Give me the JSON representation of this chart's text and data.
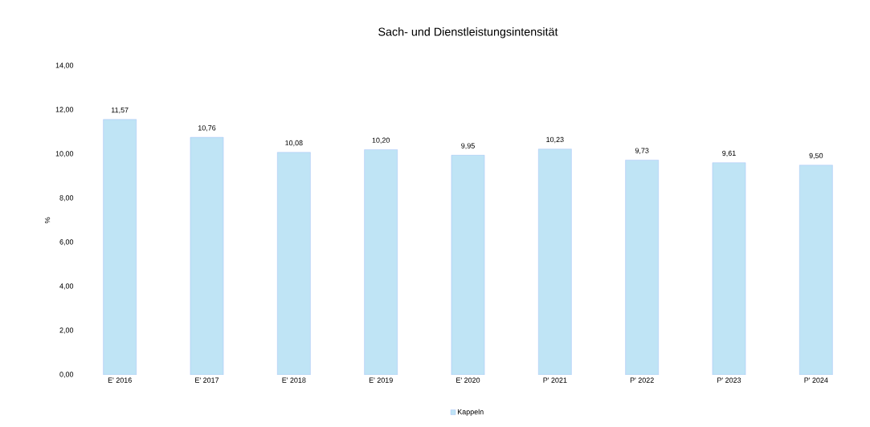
{
  "chart_data": {
    "type": "bar",
    "title": "Sach- und Dienstleistungsintensität",
    "ylabel": "%",
    "categories": [
      "E' 2016",
      "E' 2017",
      "E' 2018",
      "E' 2019",
      "E' 2020",
      "P' 2021",
      "P' 2022",
      "P' 2023",
      "P' 2024"
    ],
    "series": [
      {
        "name": "Kappeln",
        "color": "#bfe4f5",
        "values": [
          11.57,
          10.76,
          10.08,
          10.2,
          9.95,
          10.23,
          9.73,
          9.61,
          9.5
        ],
        "value_labels": [
          "11,57",
          "10,76",
          "10,08",
          "10,20",
          "9,95",
          "10,23",
          "9,73",
          "9,61",
          "9,50"
        ]
      }
    ],
    "ylim": [
      0,
      14
    ],
    "yticks": [
      {
        "value": 0,
        "label": "0,00"
      },
      {
        "value": 2,
        "label": "2,00"
      },
      {
        "value": 4,
        "label": "4,00"
      },
      {
        "value": 6,
        "label": "6,00"
      },
      {
        "value": 8,
        "label": "8,00"
      },
      {
        "value": 10,
        "label": "10,00"
      },
      {
        "value": 12,
        "label": "12,00"
      },
      {
        "value": 14,
        "label": "14,00"
      }
    ],
    "grid": false,
    "legend": "bottom"
  }
}
